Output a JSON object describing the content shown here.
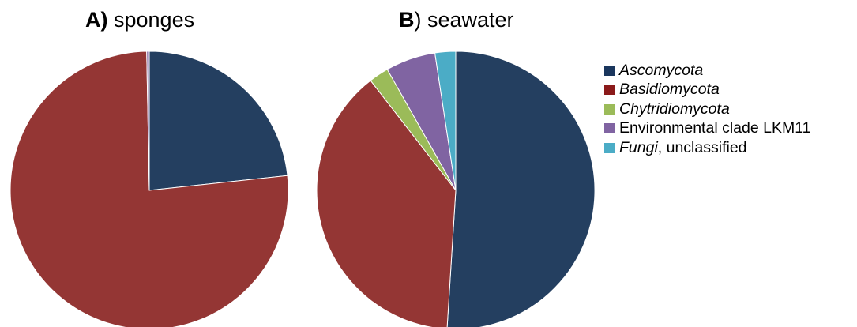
{
  "chart_data": [
    {
      "type": "pie",
      "title_letter": "A)",
      "title_text": " sponges",
      "categories": [
        "Ascomycota",
        "Basidiomycota",
        "Chytridiomycota",
        "Environmental clade LKM11",
        "Fungi, unclassified"
      ],
      "values": [
        23.3,
        76.4,
        0.0,
        0.3,
        0.0
      ]
    },
    {
      "type": "pie",
      "title_letter": "B",
      "title_text": ") seawater",
      "categories": [
        "Ascomycota",
        "Basidiomycota",
        "Chytridiomycota",
        "Environmental clade LKM11",
        "Fungi, unclassified"
      ],
      "values": [
        51.0,
        38.5,
        2.3,
        5.8,
        2.4
      ]
    }
  ],
  "legend": {
    "placement": "right",
    "items": [
      {
        "italic": "Ascomycota",
        "rest": "",
        "color": "#1a365d"
      },
      {
        "italic": "Basidiomycota",
        "rest": "",
        "color": "#8b1a1a"
      },
      {
        "italic": "Chytridiomycota",
        "rest": "",
        "color": "#9bbb59"
      },
      {
        "italic": "",
        "rest": "Environmental clade LKM11",
        "color": "#8064a2"
      },
      {
        "italic": "Fungi",
        "rest": ", unclassified",
        "color": "#4bacc6"
      }
    ]
  },
  "slice_colors": [
    "#243f60",
    "#943634",
    "#9bbb59",
    "#8064a2",
    "#4bacc6"
  ]
}
